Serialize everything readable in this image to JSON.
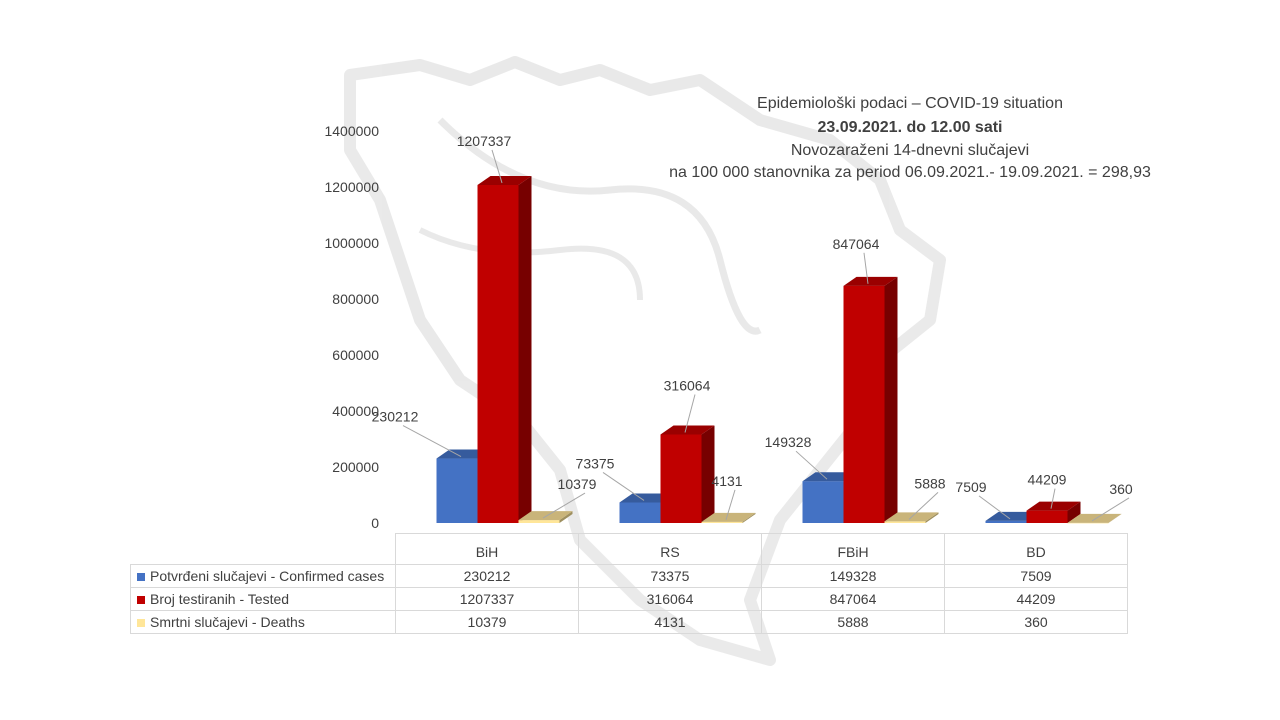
{
  "title": {
    "line1": "Epidemiološki podaci – COVID-19 situation",
    "line2": "23.09.2021. do 12.00 sati",
    "line3": "Novozaraženi 14-dnevni slučajevi",
    "line4": "na 100 000 stanovnika za period 06.09.2021.- 19.09.2021. = 298,93"
  },
  "chart_data": {
    "type": "bar",
    "categories": [
      "BiH",
      "RS",
      "FBiH",
      "BD"
    ],
    "series": [
      {
        "name": "Potvrđeni slučajevi - Confirmed cases",
        "color": "#4472c4",
        "values": [
          230212,
          73375,
          149328,
          7509
        ]
      },
      {
        "name": "Broj testiranih - Tested",
        "color": "#c00000",
        "values": [
          1207337,
          316064,
          847064,
          44209
        ]
      },
      {
        "name": "Smrtni slučajevi - Deaths",
        "color": "#ffe699",
        "values": [
          10379,
          4131,
          5888,
          360
        ]
      }
    ],
    "ylim": [
      0,
      1400000
    ],
    "yticks": [
      0,
      200000,
      400000,
      600000,
      800000,
      1000000,
      1200000,
      1400000
    ],
    "data_labels": true,
    "legend": "data-table"
  }
}
